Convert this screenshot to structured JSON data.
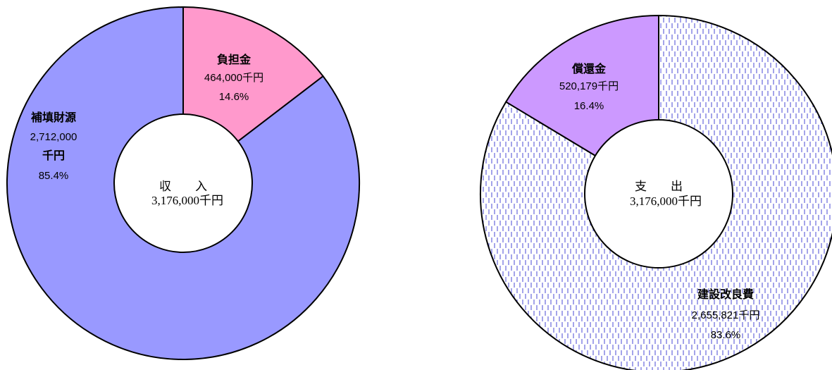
{
  "chart_data": [
    {
      "type": "pie",
      "center_label": "収　　入",
      "total_label": "3,176,000千円",
      "slices": [
        {
          "name": "負担金",
          "amount_label": "464,000千円",
          "percent_label": "14.6%",
          "value": 464000,
          "color": "#ff99cc",
          "pattern": "solid"
        },
        {
          "name": "補填財源",
          "amount_label": "2,712,000",
          "amount_unit": "千円",
          "percent_label": "85.4%",
          "value": 2712000,
          "color": "#9999ff",
          "pattern": "solid"
        }
      ]
    },
    {
      "type": "pie",
      "center_label": "支　　出",
      "total_label": "3,176,000千円",
      "slices": [
        {
          "name": "建設改良費",
          "amount_label": "2,655,821千円",
          "percent_label": "83.6%",
          "value": 2655821,
          "color": "#6666dd",
          "pattern": "dashed-vertical"
        },
        {
          "name": "償還金",
          "amount_label": "520,179千円",
          "percent_label": "16.4%",
          "value": 520179,
          "color": "#cc99ff",
          "pattern": "solid"
        }
      ]
    }
  ]
}
